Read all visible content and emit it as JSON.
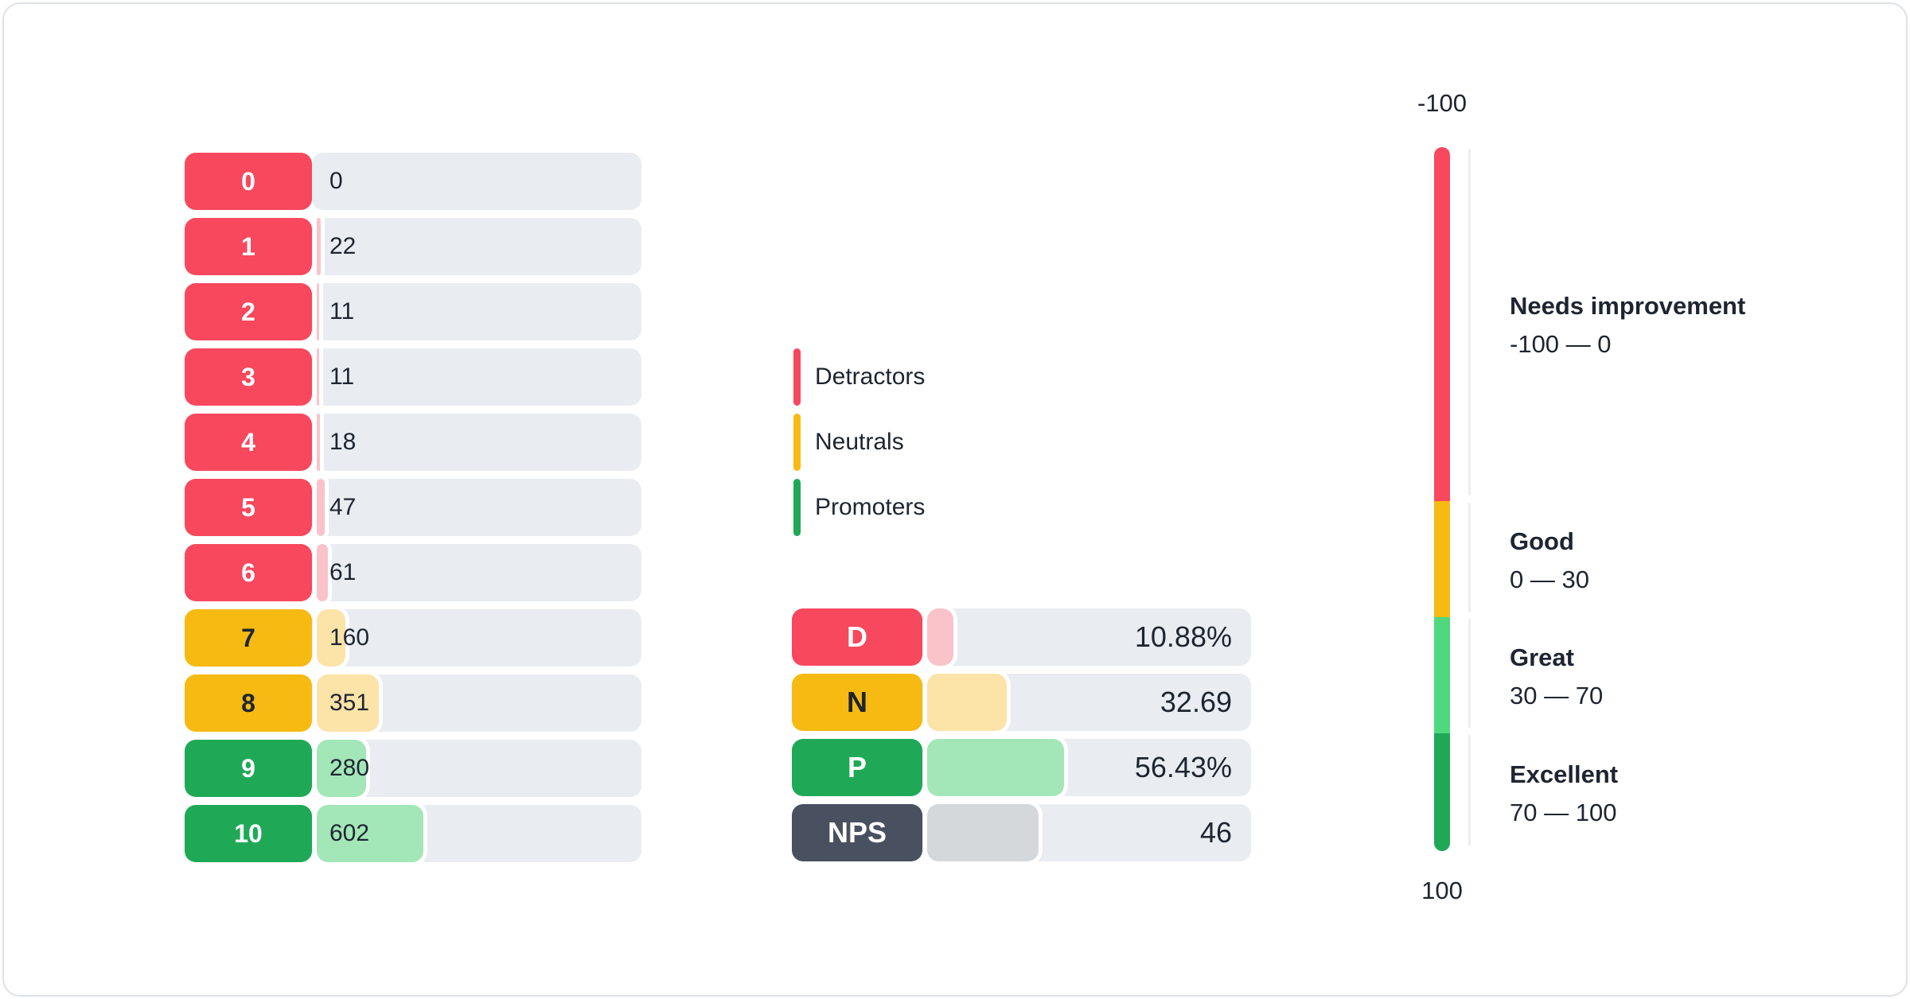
{
  "colors": {
    "text": "#1e2531",
    "track": "#e9edf1",
    "card_border": "#dee1e6",
    "groups": {
      "detractors": {
        "badge": "#f8485e",
        "fill": "#fac3ca",
        "badge_text": "#ffffff"
      },
      "neutrals": {
        "badge": "#f7ba12",
        "fill": "#fce3a8",
        "badge_text": "#1e2531"
      },
      "promoters": {
        "badge": "#1fa957",
        "fill": "#a3e7b8",
        "badge_text": "#ffffff"
      },
      "nps": {
        "badge": "#495060",
        "fill": "#d5d8db",
        "badge_text": "#ffffff"
      }
    }
  },
  "distribution": {
    "rows": [
      {
        "score": "0",
        "count": 0,
        "display": "0",
        "group": "detractors"
      },
      {
        "score": "1",
        "count": 22,
        "display": "22",
        "group": "detractors"
      },
      {
        "score": "2",
        "count": 11,
        "display": "11",
        "group": "detractors"
      },
      {
        "score": "3",
        "count": 11,
        "display": "11",
        "group": "detractors"
      },
      {
        "score": "4",
        "count": 18,
        "display": "18",
        "group": "detractors"
      },
      {
        "score": "5",
        "count": 47,
        "display": "47",
        "group": "detractors"
      },
      {
        "score": "6",
        "count": 61,
        "display": "61",
        "group": "detractors"
      },
      {
        "score": "7",
        "count": 160,
        "display": "160",
        "group": "neutrals"
      },
      {
        "score": "8",
        "count": 351,
        "display": "351",
        "group": "neutrals"
      },
      {
        "score": "9",
        "count": 280,
        "display": "280",
        "group": "promoters"
      },
      {
        "score": "10",
        "count": 602,
        "display": "602",
        "group": "promoters"
      }
    ]
  },
  "legend": {
    "items": [
      {
        "label": "Detractors",
        "group": "detractors"
      },
      {
        "label": "Neutrals",
        "group": "neutrals"
      },
      {
        "label": "Promoters",
        "group": "promoters"
      }
    ]
  },
  "summary": {
    "rows": [
      {
        "label": "D",
        "value": 10.88,
        "display": "10.88%",
        "group": "detractors"
      },
      {
        "label": "N",
        "value": 32.69,
        "display": "32.69",
        "group": "neutrals"
      },
      {
        "label": "P",
        "value": 56.43,
        "display": "56.43%",
        "group": "promoters"
      },
      {
        "label": "NPS",
        "value": 46,
        "display": "46",
        "group": "nps"
      }
    ]
  },
  "gauge": {
    "top_label": "-100",
    "bottom_label": "100",
    "segments": [
      {
        "title": "Needs improvement",
        "range": "-100 — 0",
        "color": "#f8485e",
        "size_pct": 50.28
      },
      {
        "title": "Good",
        "range": "0 — 30",
        "color": "#f7ba12",
        "size_pct": 16.5
      },
      {
        "title": "Great",
        "range": "30 — 70",
        "color": "#4fd87d",
        "size_pct": 16.5
      },
      {
        "title": "Excellent",
        "range": "70 — 100",
        "color": "#1fa957",
        "size_pct": 16.72
      }
    ]
  },
  "chart_data": [
    {
      "type": "bar",
      "title": "NPS score distribution",
      "orientation": "horizontal",
      "categories": [
        "0",
        "1",
        "2",
        "3",
        "4",
        "5",
        "6",
        "7",
        "8",
        "9",
        "10"
      ],
      "values": [
        0,
        22,
        11,
        11,
        18,
        47,
        61,
        160,
        351,
        280,
        602
      ],
      "groups": [
        "detractors",
        "detractors",
        "detractors",
        "detractors",
        "detractors",
        "detractors",
        "detractors",
        "neutrals",
        "neutrals",
        "promoters",
        "promoters"
      ],
      "legend_entries": [
        "Detractors",
        "Neutrals",
        "Promoters"
      ],
      "legend_position": "right",
      "grid": false
    },
    {
      "type": "bar",
      "title": "NPS summary",
      "orientation": "horizontal",
      "categories": [
        "D",
        "N",
        "P",
        "NPS"
      ],
      "values": [
        10.88,
        32.69,
        56.43,
        46
      ],
      "value_labels": [
        "10.88%",
        "32.69",
        "56.43%",
        "46"
      ],
      "grid": false
    },
    {
      "type": "gauge",
      "title": "NPS scale",
      "min": -100,
      "max": 100,
      "value": 46,
      "bands": [
        {
          "label": "Needs improvement",
          "from": -100,
          "to": 0
        },
        {
          "label": "Good",
          "from": 0,
          "to": 30
        },
        {
          "label": "Great",
          "from": 30,
          "to": 70
        },
        {
          "label": "Excellent",
          "from": 70,
          "to": 100
        }
      ]
    }
  ]
}
